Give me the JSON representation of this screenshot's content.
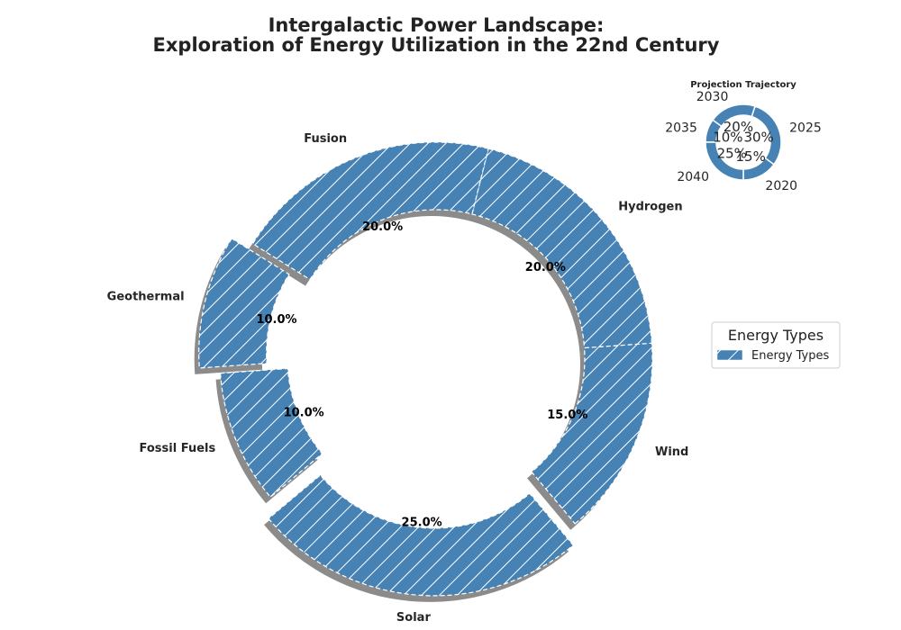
{
  "chart_data": [
    {
      "type": "pie",
      "title_lines": [
        "Intergalactic Power Landscape:",
        "Exploration of Energy Utilization in the 22nd Century"
      ],
      "categories": [
        "Solar",
        "Wind",
        "Hydrogen",
        "Fusion",
        "Geothermal",
        "Fossil Fuels"
      ],
      "values": [
        25,
        15,
        20,
        20,
        10,
        10
      ],
      "percent_labels": [
        "25.0%",
        "15.0%",
        "20.0%",
        "20.0%",
        "10.0%",
        "10.0%"
      ],
      "explode": [
        0.1,
        0,
        0,
        0,
        0.1,
        0
      ],
      "start_angle_deg": 220,
      "donut": true,
      "hatch": "diagonal",
      "color": "#4682b4",
      "edge_color": "#ffffff",
      "legend": {
        "title": "Energy Types",
        "entries": [
          "Energy Types"
        ],
        "placement": "center-right"
      }
    },
    {
      "type": "pie",
      "title": "Projection Trajectory",
      "categories": [
        "2020",
        "2025",
        "2030",
        "2035",
        "2040"
      ],
      "values": [
        15,
        30,
        20,
        10,
        25
      ],
      "percent_labels": [
        "15%",
        "30%",
        "20%",
        "10%",
        "25%"
      ],
      "donut": true,
      "color": "#4682b4",
      "placement": "top-right"
    }
  ]
}
